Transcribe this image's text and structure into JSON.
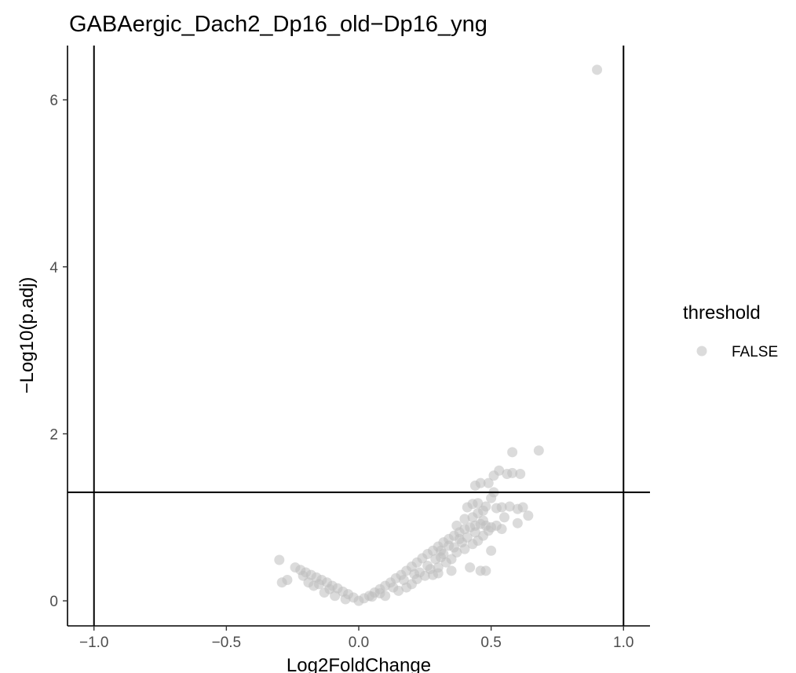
{
  "chart_data": {
    "type": "scatter",
    "title": "GABAergic_Dach2_Dp16_old−Dp16_yng",
    "xlabel": "Log2FoldChange",
    "ylabel": "−Log10(p.adj)",
    "xlim": [
      -1.1,
      1.1
    ],
    "ylim": [
      -0.3,
      6.65
    ],
    "x_ticks": [
      -1.0,
      -0.5,
      0.0,
      0.5,
      1.0
    ],
    "x_tick_labels": [
      "−1.0",
      "−0.5",
      "0.0",
      "0.5",
      "1.0"
    ],
    "y_ticks": [
      0,
      2,
      4,
      6
    ],
    "y_tick_labels": [
      "0",
      "2",
      "4",
      "6"
    ],
    "vlines": [
      -1.0,
      1.0
    ],
    "hline": 1.3,
    "grid": false,
    "point_color": "#bebebe",
    "line_color": "#000000",
    "legend": {
      "title": "threshold",
      "placement": "right",
      "entries": [
        {
          "label": "FALSE",
          "color": "#bebebe"
        }
      ]
    },
    "series": [
      {
        "name": "FALSE",
        "points": [
          [
            0.9,
            6.36
          ],
          [
            0.68,
            1.8
          ],
          [
            0.58,
            1.78
          ],
          [
            0.53,
            1.56
          ],
          [
            0.56,
            1.52
          ],
          [
            0.58,
            1.53
          ],
          [
            0.61,
            1.52
          ],
          [
            0.51,
            1.5
          ],
          [
            0.49,
            1.41
          ],
          [
            0.46,
            1.41
          ],
          [
            0.44,
            1.38
          ],
          [
            0.62,
            1.12
          ],
          [
            0.57,
            1.13
          ],
          [
            0.54,
            1.12
          ],
          [
            0.52,
            1.11
          ],
          [
            0.48,
            1.13
          ],
          [
            0.51,
            1.3
          ],
          [
            0.5,
            1.23
          ],
          [
            0.6,
            1.1
          ],
          [
            0.64,
            1.02
          ],
          [
            0.6,
            0.93
          ],
          [
            0.55,
            1.0
          ],
          [
            0.47,
            1.08
          ],
          [
            0.45,
            1.17
          ],
          [
            0.43,
            1.16
          ],
          [
            0.41,
            1.12
          ],
          [
            0.5,
            0.6
          ],
          [
            0.46,
            0.36
          ],
          [
            0.48,
            0.36
          ],
          [
            0.35,
            0.36
          ],
          [
            0.28,
            0.31
          ],
          [
            0.3,
            0.33
          ],
          [
            0.42,
            0.4
          ],
          [
            0.31,
            0.52
          ],
          [
            -0.3,
            0.49
          ],
          [
            -0.29,
            0.22
          ],
          [
            -0.27,
            0.25
          ],
          [
            -0.24,
            0.4
          ],
          [
            -0.22,
            0.37
          ],
          [
            -0.2,
            0.34
          ],
          [
            -0.18,
            0.31
          ],
          [
            -0.16,
            0.28
          ],
          [
            -0.14,
            0.25
          ],
          [
            -0.12,
            0.22
          ],
          [
            -0.1,
            0.18
          ],
          [
            -0.08,
            0.15
          ],
          [
            -0.06,
            0.11
          ],
          [
            -0.04,
            0.08
          ],
          [
            -0.02,
            0.04
          ],
          [
            0.0,
            0.0
          ],
          [
            -0.13,
            0.1
          ],
          [
            -0.17,
            0.18
          ],
          [
            -0.21,
            0.3
          ],
          [
            -0.09,
            0.06
          ],
          [
            -0.05,
            0.02
          ],
          [
            -0.11,
            0.14
          ],
          [
            -0.19,
            0.22
          ],
          [
            -0.15,
            0.2
          ],
          [
            0.02,
            0.03
          ],
          [
            0.04,
            0.06
          ],
          [
            0.06,
            0.1
          ],
          [
            0.08,
            0.14
          ],
          [
            0.1,
            0.18
          ],
          [
            0.12,
            0.22
          ],
          [
            0.14,
            0.27
          ],
          [
            0.16,
            0.31
          ],
          [
            0.18,
            0.36
          ],
          [
            0.2,
            0.41
          ],
          [
            0.22,
            0.46
          ],
          [
            0.24,
            0.51
          ],
          [
            0.26,
            0.56
          ],
          [
            0.28,
            0.6
          ],
          [
            0.3,
            0.65
          ],
          [
            0.32,
            0.7
          ],
          [
            0.34,
            0.74
          ],
          [
            0.36,
            0.78
          ],
          [
            0.38,
            0.82
          ],
          [
            0.4,
            0.86
          ],
          [
            0.42,
            0.88
          ],
          [
            0.44,
            0.9
          ],
          [
            0.46,
            0.92
          ],
          [
            0.48,
            0.9
          ],
          [
            0.5,
            0.88
          ],
          [
            0.1,
            0.06
          ],
          [
            0.15,
            0.12
          ],
          [
            0.2,
            0.2
          ],
          [
            0.25,
            0.3
          ],
          [
            0.3,
            0.4
          ],
          [
            0.35,
            0.5
          ],
          [
            0.4,
            0.62
          ],
          [
            0.45,
            0.72
          ],
          [
            0.18,
            0.16
          ],
          [
            0.22,
            0.26
          ],
          [
            0.27,
            0.38
          ],
          [
            0.33,
            0.46
          ],
          [
            0.37,
            0.58
          ],
          [
            0.43,
            0.68
          ],
          [
            0.47,
            0.78
          ],
          [
            0.39,
            0.7
          ],
          [
            0.41,
            0.76
          ],
          [
            0.44,
            0.82
          ],
          [
            0.36,
            0.64
          ],
          [
            0.32,
            0.56
          ],
          [
            0.29,
            0.5
          ],
          [
            0.26,
            0.42
          ],
          [
            0.23,
            0.34
          ],
          [
            0.13,
            0.16
          ],
          [
            0.08,
            0.09
          ],
          [
            0.05,
            0.05
          ],
          [
            0.17,
            0.25
          ],
          [
            0.21,
            0.32
          ],
          [
            0.31,
            0.6
          ],
          [
            0.34,
            0.66
          ],
          [
            0.38,
            0.74
          ],
          [
            0.49,
            0.84
          ],
          [
            0.52,
            0.9
          ],
          [
            0.54,
            0.86
          ],
          [
            0.47,
            0.96
          ],
          [
            0.43,
            1.0
          ],
          [
            0.4,
            0.98
          ],
          [
            0.45,
            1.05
          ],
          [
            0.37,
            0.9
          ]
        ]
      }
    ]
  }
}
